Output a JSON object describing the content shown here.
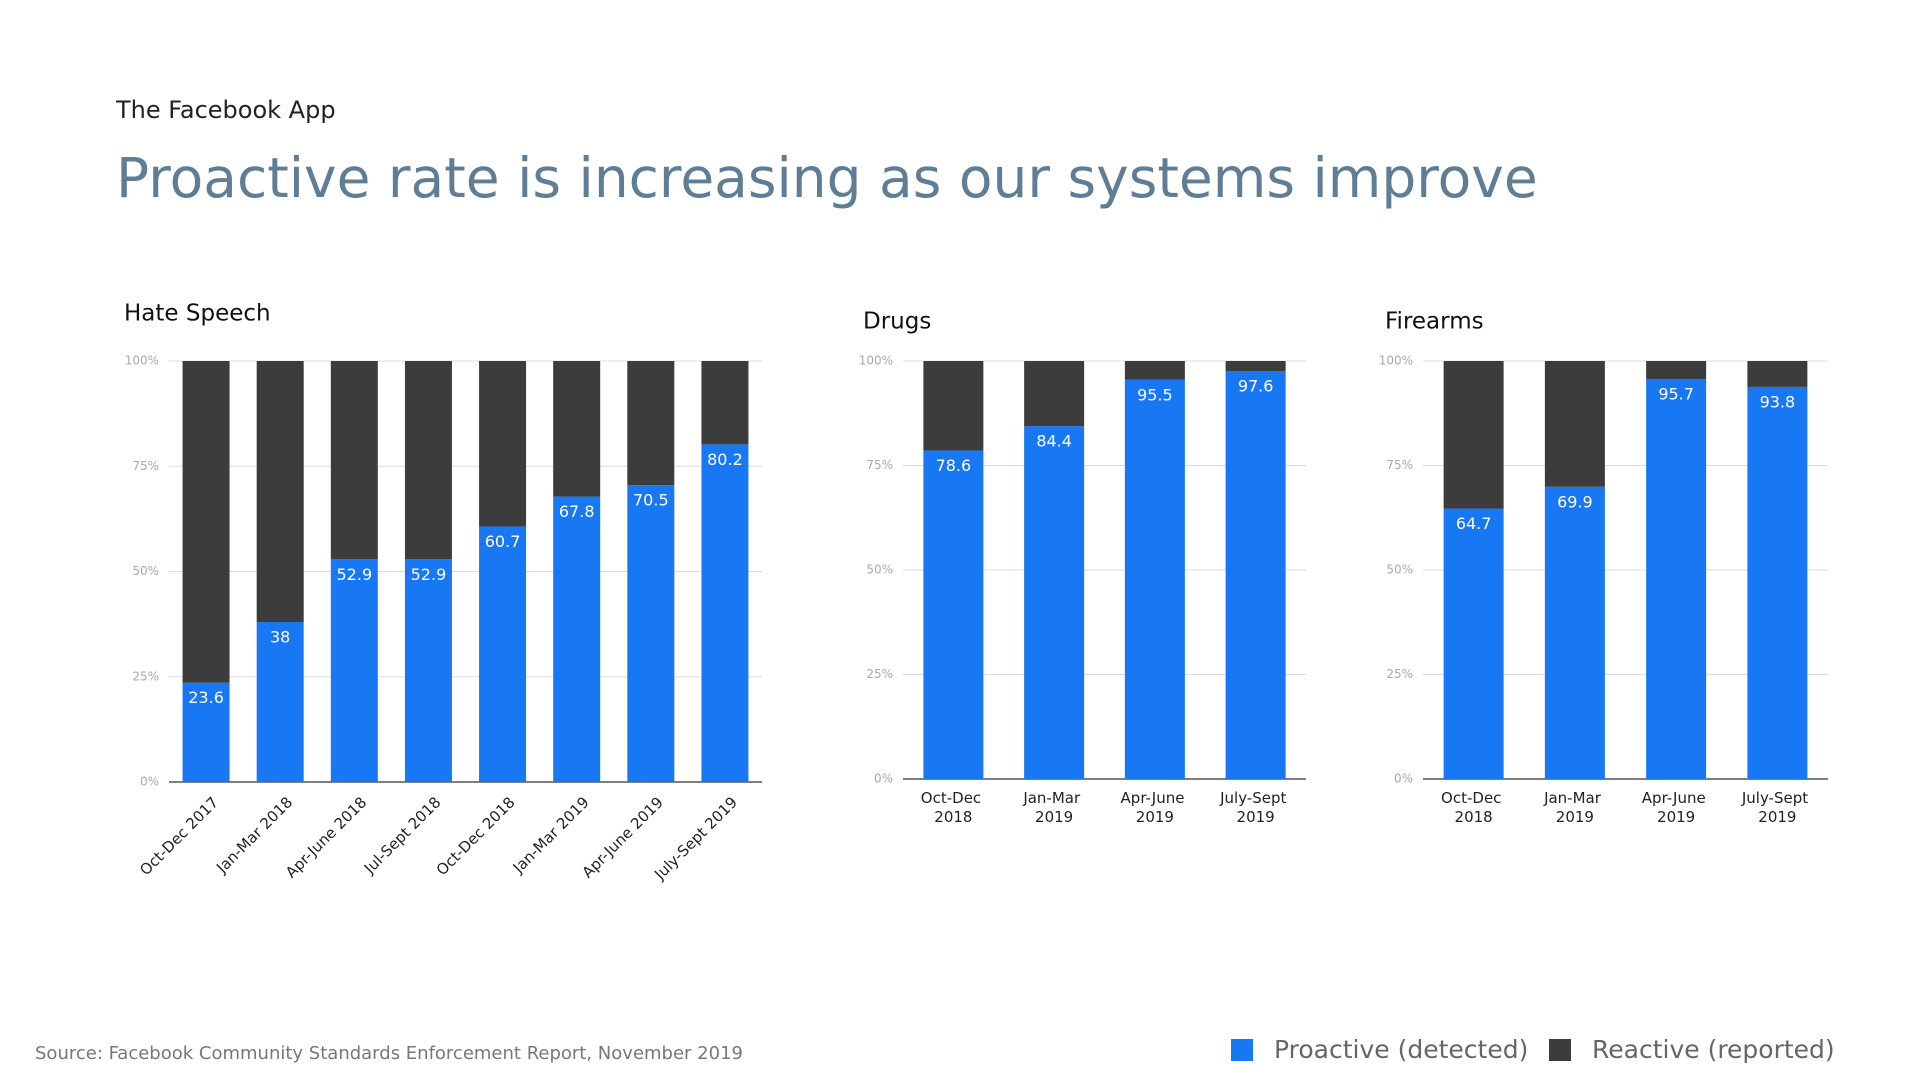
{
  "header": {
    "subtitle": "The Facebook App",
    "title": "Proactive rate is increasing as our systems improve"
  },
  "source": "Source: Facebook Community Standards Enforcement Report, November 2019",
  "chart_data": [
    {
      "type": "stacked_bar",
      "title": "Hate Speech",
      "categories": [
        "Oct-Dec 2017",
        "Jan-Mar 2018",
        "Apr-June 2018",
        "Jul-Sept 2018",
        "Oct-Dec 2018",
        "Jan-Mar 2019",
        "Apr-June 2019",
        "July-Sept 2019"
      ],
      "series": [
        {
          "name": "Proactive (detected)",
          "color": "#1877f2",
          "values": [
            23.6,
            38,
            52.9,
            52.9,
            60.7,
            67.8,
            70.5,
            80.2
          ]
        },
        {
          "name": "Reactive (reported)",
          "color": "#3c3c3c",
          "values": [
            76.4,
            62,
            47.1,
            47.1,
            39.3,
            32.2,
            29.5,
            19.8
          ]
        }
      ],
      "ylim": [
        0,
        100
      ],
      "yticks": [
        {
          "value": 0,
          "label": "0%"
        },
        {
          "value": 25,
          "label": "25%"
        },
        {
          "value": 50,
          "label": "50%"
        },
        {
          "value": 75,
          "label": "75%"
        },
        {
          "value": 100,
          "label": "100%"
        }
      ],
      "grid": true
    },
    {
      "type": "stacked_bar",
      "title": "Drugs",
      "categories": [
        "Oct-Dec 2018",
        "Jan-Mar 2019",
        "Apr-June 2019",
        "July-Sept 2019"
      ],
      "series": [
        {
          "name": "Proactive (detected)",
          "color": "#1877f2",
          "values": [
            78.6,
            84.4,
            95.5,
            97.6
          ]
        },
        {
          "name": "Reactive (reported)",
          "color": "#3c3c3c",
          "values": [
            21.4,
            15.6,
            4.5,
            2.4
          ]
        }
      ],
      "ylim": [
        0,
        100
      ],
      "yticks": [
        {
          "value": 0,
          "label": "0%"
        },
        {
          "value": 25,
          "label": "25%"
        },
        {
          "value": 50,
          "label": "50%"
        },
        {
          "value": 75,
          "label": "75%"
        },
        {
          "value": 100,
          "label": "100%"
        }
      ],
      "grid": true
    },
    {
      "type": "stacked_bar",
      "title": "Firearms",
      "categories": [
        "Oct-Dec 2018",
        "Jan-Mar 2019",
        "Apr-June 2019",
        "July-Sept 2019"
      ],
      "series": [
        {
          "name": "Proactive (detected)",
          "color": "#1877f2",
          "values": [
            64.7,
            69.9,
            95.7,
            93.8
          ]
        },
        {
          "name": "Reactive (reported)",
          "color": "#3c3c3c",
          "values": [
            35.3,
            30.1,
            4.3,
            6.2
          ]
        }
      ],
      "ylim": [
        0,
        100
      ],
      "yticks": [
        {
          "value": 0,
          "label": "0%"
        },
        {
          "value": 25,
          "label": "25%"
        },
        {
          "value": 50,
          "label": "50%"
        },
        {
          "value": 75,
          "label": "75%"
        },
        {
          "value": 100,
          "label": "100%"
        }
      ],
      "grid": true
    }
  ]
}
